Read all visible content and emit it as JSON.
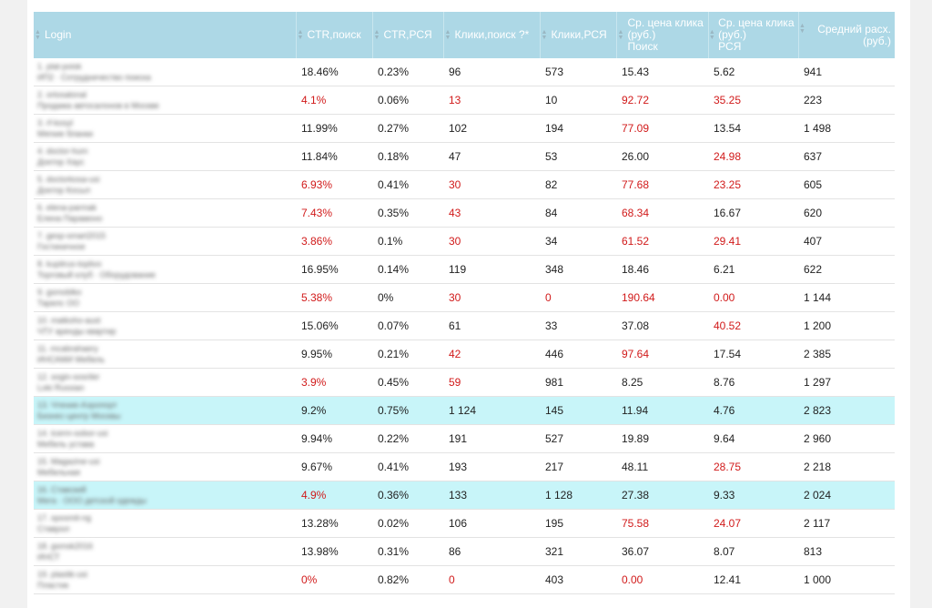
{
  "columns": [
    {
      "label": "Login"
    },
    {
      "label": "CTR,поиск"
    },
    {
      "label": "CTR,РСЯ"
    },
    {
      "label": "Клики,поиск ?*"
    },
    {
      "label": "Клики,РСЯ"
    },
    {
      "label": "Ср. цена клика (руб.) Поиск",
      "lines": [
        "Ср. цена клика",
        "(руб.)",
        "Поиск"
      ]
    },
    {
      "label": "Ср. цена клика (руб.) РСЯ",
      "lines": [
        "Ср. цена клика",
        "(руб.)",
        "РСЯ"
      ]
    },
    {
      "label": "Средний расх. (руб.)",
      "lines": [
        "Средний расх.",
        "(руб.)"
      ]
    }
  ],
  "rows": [
    {
      "login": [
        "1. plat-poisk",
        "ИП2 · Сотрудничество поиска"
      ],
      "highlight": false,
      "cells": [
        {
          "v": "18.46%",
          "red": false
        },
        {
          "v": "0.23%",
          "red": false
        },
        {
          "v": "96",
          "red": false
        },
        {
          "v": "573",
          "red": false
        },
        {
          "v": "15.43",
          "red": false
        },
        {
          "v": "5.62",
          "red": false
        },
        {
          "v": "941",
          "red": false
        }
      ]
    },
    {
      "login": [
        "2. ortosalonal",
        "Продажа автосалонов в Москве"
      ],
      "highlight": false,
      "cells": [
        {
          "v": "4.1%",
          "red": true
        },
        {
          "v": "0.06%",
          "red": false
        },
        {
          "v": "13",
          "red": true
        },
        {
          "v": "10",
          "red": false
        },
        {
          "v": "92.72",
          "red": true
        },
        {
          "v": "35.25",
          "red": true
        },
        {
          "v": "223",
          "red": false
        }
      ]
    },
    {
      "login": [
        "3. rf-kosyl",
        "Мягкие бланки"
      ],
      "highlight": false,
      "cells": [
        {
          "v": "11.99%",
          "red": false
        },
        {
          "v": "0.27%",
          "red": false
        },
        {
          "v": "102",
          "red": false
        },
        {
          "v": "194",
          "red": false
        },
        {
          "v": "77.09",
          "red": true
        },
        {
          "v": "13.54",
          "red": false
        },
        {
          "v": "1 498",
          "red": false
        }
      ]
    },
    {
      "login": [
        "4. doctor-hum",
        "Доктор Хаус"
      ],
      "highlight": false,
      "cells": [
        {
          "v": "11.84%",
          "red": false
        },
        {
          "v": "0.18%",
          "red": false
        },
        {
          "v": "47",
          "red": false
        },
        {
          "v": "53",
          "red": false
        },
        {
          "v": "26.00",
          "red": false
        },
        {
          "v": "24.98",
          "red": true
        },
        {
          "v": "637",
          "red": false
        }
      ]
    },
    {
      "login": [
        "5. doctorkosa-usi",
        "Доктор Косыл"
      ],
      "highlight": false,
      "cells": [
        {
          "v": "6.93%",
          "red": true
        },
        {
          "v": "0.41%",
          "red": false
        },
        {
          "v": "30",
          "red": true
        },
        {
          "v": "82",
          "red": false
        },
        {
          "v": "77.68",
          "red": true
        },
        {
          "v": "23.25",
          "red": true
        },
        {
          "v": "605",
          "red": false
        }
      ]
    },
    {
      "login": [
        "6. elena-parmak",
        "Елена Парамоно"
      ],
      "highlight": false,
      "cells": [
        {
          "v": "7.43%",
          "red": true
        },
        {
          "v": "0.35%",
          "red": false
        },
        {
          "v": "43",
          "red": true
        },
        {
          "v": "84",
          "red": false
        },
        {
          "v": "68.34",
          "red": true
        },
        {
          "v": "16.67",
          "red": false
        },
        {
          "v": "620",
          "red": false
        }
      ]
    },
    {
      "login": [
        "7. gesp-smart2015",
        "Гостиничное"
      ],
      "highlight": false,
      "cells": [
        {
          "v": "3.86%",
          "red": true
        },
        {
          "v": "0.1%",
          "red": false
        },
        {
          "v": "30",
          "red": true
        },
        {
          "v": "34",
          "red": false
        },
        {
          "v": "61.52",
          "red": true
        },
        {
          "v": "29.41",
          "red": true
        },
        {
          "v": "407",
          "red": false
        }
      ]
    },
    {
      "login": [
        "8. kupitrus-toplivo",
        "Торговый клуб · Оборудование"
      ],
      "highlight": false,
      "cells": [
        {
          "v": "16.95%",
          "red": false
        },
        {
          "v": "0.14%",
          "red": false
        },
        {
          "v": "119",
          "red": false
        },
        {
          "v": "348",
          "red": false
        },
        {
          "v": "18.46",
          "red": false
        },
        {
          "v": "6.21",
          "red": false
        },
        {
          "v": "622",
          "red": false
        }
      ]
    },
    {
      "login": [
        "9. gsmoblko",
        "Тарелс ОО"
      ],
      "highlight": false,
      "cells": [
        {
          "v": "5.38%",
          "red": true
        },
        {
          "v": "0%",
          "red": false
        },
        {
          "v": "30",
          "red": true
        },
        {
          "v": "0",
          "red": true
        },
        {
          "v": "190.64",
          "red": true
        },
        {
          "v": "0.00",
          "red": true
        },
        {
          "v": "1 144",
          "red": false
        }
      ]
    },
    {
      "login": [
        "10. matkoho-aust",
        "ЧТУ аренды квартир"
      ],
      "highlight": false,
      "cells": [
        {
          "v": "15.06%",
          "red": false
        },
        {
          "v": "0.07%",
          "red": false
        },
        {
          "v": "61",
          "red": false
        },
        {
          "v": "33",
          "red": false
        },
        {
          "v": "37.08",
          "red": false
        },
        {
          "v": "40.52",
          "red": true
        },
        {
          "v": "1 200",
          "red": false
        }
      ]
    },
    {
      "login": [
        "11. mcabrahaery",
        "ИНСАМИ Мебель"
      ],
      "highlight": false,
      "cells": [
        {
          "v": "9.95%",
          "red": false
        },
        {
          "v": "0.21%",
          "red": false
        },
        {
          "v": "42",
          "red": true
        },
        {
          "v": "446",
          "red": false
        },
        {
          "v": "97.64",
          "red": true
        },
        {
          "v": "17.54",
          "red": false
        },
        {
          "v": "2 385",
          "red": false
        }
      ]
    },
    {
      "login": [
        "12. sogin-sosriler",
        "Loki Russian"
      ],
      "highlight": false,
      "cells": [
        {
          "v": "3.9%",
          "red": true
        },
        {
          "v": "0.45%",
          "red": false
        },
        {
          "v": "59",
          "red": true
        },
        {
          "v": "981",
          "red": false
        },
        {
          "v": "8.25",
          "red": false
        },
        {
          "v": "8.76",
          "red": false
        },
        {
          "v": "1 297",
          "red": false
        }
      ]
    },
    {
      "login": [
        "13. Чтение-Аэропорт",
        "Бизнес-центр Москвы"
      ],
      "highlight": true,
      "cells": [
        {
          "v": "9.2%",
          "red": false
        },
        {
          "v": "0.75%",
          "red": false
        },
        {
          "v": "1 124",
          "red": false
        },
        {
          "v": "145",
          "red": false
        },
        {
          "v": "11.94",
          "red": false
        },
        {
          "v": "4.76",
          "red": false
        },
        {
          "v": "2 823",
          "red": false
        }
      ]
    },
    {
      "login": [
        "14. tcerm-sobor-usi",
        "Мебель устава"
      ],
      "highlight": false,
      "cells": [
        {
          "v": "9.94%",
          "red": false
        },
        {
          "v": "0.22%",
          "red": false
        },
        {
          "v": "191",
          "red": false
        },
        {
          "v": "527",
          "red": false
        },
        {
          "v": "19.89",
          "red": false
        },
        {
          "v": "9.64",
          "red": false
        },
        {
          "v": "2 960",
          "red": false
        }
      ]
    },
    {
      "login": [
        "15. Magazine-usi",
        "Мебельная"
      ],
      "highlight": false,
      "cells": [
        {
          "v": "9.67%",
          "red": false
        },
        {
          "v": "0.41%",
          "red": false
        },
        {
          "v": "193",
          "red": false
        },
        {
          "v": "217",
          "red": false
        },
        {
          "v": "48.11",
          "red": false
        },
        {
          "v": "28.75",
          "red": true
        },
        {
          "v": "2 218",
          "red": false
        }
      ]
    },
    {
      "login": [
        "16. Ставский",
        "Мега · ООО детской одежды"
      ],
      "highlight": true,
      "cells": [
        {
          "v": "4.9%",
          "red": true
        },
        {
          "v": "0.36%",
          "red": false
        },
        {
          "v": "133",
          "red": false
        },
        {
          "v": "1 128",
          "red": false
        },
        {
          "v": "27.38",
          "red": false
        },
        {
          "v": "9.33",
          "red": false
        },
        {
          "v": "2 024",
          "red": false
        }
      ]
    },
    {
      "login": [
        "17. sposmit-ng",
        "Ставрол"
      ],
      "highlight": false,
      "cells": [
        {
          "v": "13.28%",
          "red": false
        },
        {
          "v": "0.02%",
          "red": false
        },
        {
          "v": "106",
          "red": false
        },
        {
          "v": "195",
          "red": false
        },
        {
          "v": "75.58",
          "red": true
        },
        {
          "v": "24.07",
          "red": true
        },
        {
          "v": "2 117",
          "red": false
        }
      ]
    },
    {
      "login": [
        "18. gsmsk2016",
        "ИНСТ"
      ],
      "highlight": false,
      "cells": [
        {
          "v": "13.98%",
          "red": false
        },
        {
          "v": "0.31%",
          "red": false
        },
        {
          "v": "86",
          "red": false
        },
        {
          "v": "321",
          "red": false
        },
        {
          "v": "36.07",
          "red": false
        },
        {
          "v": "8.07",
          "red": false
        },
        {
          "v": "813",
          "red": false
        }
      ]
    },
    {
      "login": [
        "19. plastik-usi",
        "Пластик"
      ],
      "highlight": false,
      "cells": [
        {
          "v": "0%",
          "red": true
        },
        {
          "v": "0.82%",
          "red": false
        },
        {
          "v": "0",
          "red": true
        },
        {
          "v": "403",
          "red": false
        },
        {
          "v": "0.00",
          "red": true
        },
        {
          "v": "12.41",
          "red": false
        },
        {
          "v": "1 000",
          "red": false
        }
      ]
    }
  ]
}
